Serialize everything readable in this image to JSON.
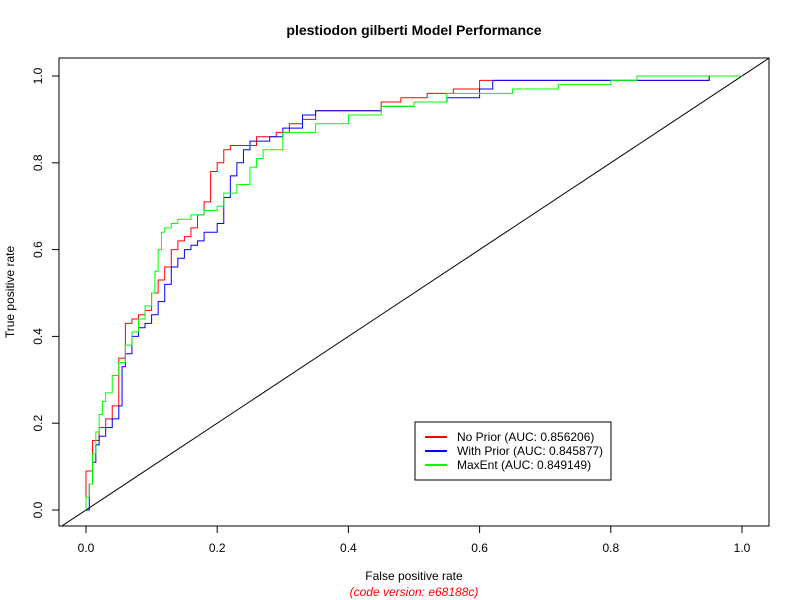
{
  "chart_data": {
    "type": "line",
    "title": "plestiodon gilberti Model Performance",
    "xlabel": "False positive rate",
    "ylabel": "True positive rate",
    "footnote": "(code version: e68188c)",
    "xlim": [
      0,
      1
    ],
    "ylim": [
      0,
      1
    ],
    "x_ticks": [
      0.0,
      0.2,
      0.4,
      0.6,
      0.8,
      1.0
    ],
    "x_tick_labels": [
      "0.0",
      "0.2",
      "0.4",
      "0.6",
      "0.8",
      "1.0"
    ],
    "y_ticks": [
      0.0,
      0.2,
      0.4,
      0.6,
      0.8,
      1.0
    ],
    "y_tick_labels": [
      "0.0",
      "0.2",
      "0.4",
      "0.6",
      "0.8",
      "1.0"
    ],
    "grid": false,
    "legend_position": "bottom-right",
    "diagonal_color": "#000000",
    "footnote_color": "#ff0000",
    "series": [
      {
        "name": "No Prior (AUC: 0.856206)",
        "color": "#ff0000",
        "points": [
          [
            0,
            0
          ],
          [
            0,
            0.09
          ],
          [
            0.01,
            0.12
          ],
          [
            0.01,
            0.16
          ],
          [
            0.02,
            0.19
          ],
          [
            0.03,
            0.21
          ],
          [
            0.04,
            0.22
          ],
          [
            0.04,
            0.24
          ],
          [
            0.05,
            0.25
          ],
          [
            0.05,
            0.35
          ],
          [
            0.06,
            0.39
          ],
          [
            0.06,
            0.43
          ],
          [
            0.07,
            0.44
          ],
          [
            0.08,
            0.45
          ],
          [
            0.09,
            0.46
          ],
          [
            0.1,
            0.5
          ],
          [
            0.11,
            0.53
          ],
          [
            0.12,
            0.56
          ],
          [
            0.13,
            0.6
          ],
          [
            0.14,
            0.62
          ],
          [
            0.15,
            0.63
          ],
          [
            0.16,
            0.65
          ],
          [
            0.17,
            0.68
          ],
          [
            0.18,
            0.71
          ],
          [
            0.19,
            0.72
          ],
          [
            0.19,
            0.78
          ],
          [
            0.2,
            0.8
          ],
          [
            0.21,
            0.83
          ],
          [
            0.22,
            0.84
          ],
          [
            0.25,
            0.84
          ],
          [
            0.26,
            0.86
          ],
          [
            0.29,
            0.87
          ],
          [
            0.31,
            0.89
          ],
          [
            0.33,
            0.9
          ],
          [
            0.35,
            0.92
          ],
          [
            0.4,
            0.92
          ],
          [
            0.45,
            0.94
          ],
          [
            0.48,
            0.95
          ],
          [
            0.52,
            0.96
          ],
          [
            0.56,
            0.97
          ],
          [
            0.6,
            0.99
          ],
          [
            0.7,
            0.99
          ],
          [
            0.9,
            0.99
          ],
          [
            0.95,
            1.0
          ],
          [
            1,
            1
          ]
        ]
      },
      {
        "name": "With Prior (AUC: 0.845877)",
        "color": "#0000ff",
        "points": [
          [
            0,
            0
          ],
          [
            0.005,
            0.06
          ],
          [
            0.01,
            0.11
          ],
          [
            0.015,
            0.15
          ],
          [
            0.02,
            0.17
          ],
          [
            0.03,
            0.19
          ],
          [
            0.04,
            0.21
          ],
          [
            0.05,
            0.24
          ],
          [
            0.055,
            0.33
          ],
          [
            0.06,
            0.36
          ],
          [
            0.07,
            0.4
          ],
          [
            0.08,
            0.42
          ],
          [
            0.09,
            0.43
          ],
          [
            0.1,
            0.45
          ],
          [
            0.11,
            0.48
          ],
          [
            0.12,
            0.52
          ],
          [
            0.13,
            0.56
          ],
          [
            0.14,
            0.58
          ],
          [
            0.15,
            0.6
          ],
          [
            0.16,
            0.61
          ],
          [
            0.17,
            0.62
          ],
          [
            0.18,
            0.64
          ],
          [
            0.2,
            0.66
          ],
          [
            0.21,
            0.72
          ],
          [
            0.22,
            0.77
          ],
          [
            0.23,
            0.8
          ],
          [
            0.24,
            0.83
          ],
          [
            0.25,
            0.85
          ],
          [
            0.28,
            0.86
          ],
          [
            0.3,
            0.88
          ],
          [
            0.33,
            0.91
          ],
          [
            0.35,
            0.92
          ],
          [
            0.4,
            0.92
          ],
          [
            0.45,
            0.93
          ],
          [
            0.5,
            0.94
          ],
          [
            0.55,
            0.95
          ],
          [
            0.6,
            0.97
          ],
          [
            0.62,
            0.99
          ],
          [
            0.7,
            0.99
          ],
          [
            0.85,
            0.99
          ],
          [
            0.95,
            1.0
          ],
          [
            1,
            1
          ]
        ]
      },
      {
        "name": "MaxEnt (AUC: 0.849149)",
        "color": "#00ff00",
        "points": [
          [
            0,
            0
          ],
          [
            0,
            0.03
          ],
          [
            0.005,
            0.06
          ],
          [
            0.01,
            0.13
          ],
          [
            0.015,
            0.18
          ],
          [
            0.02,
            0.22
          ],
          [
            0.025,
            0.25
          ],
          [
            0.03,
            0.27
          ],
          [
            0.04,
            0.31
          ],
          [
            0.05,
            0.34
          ],
          [
            0.06,
            0.38
          ],
          [
            0.07,
            0.41
          ],
          [
            0.08,
            0.44
          ],
          [
            0.09,
            0.47
          ],
          [
            0.1,
            0.5
          ],
          [
            0.105,
            0.55
          ],
          [
            0.11,
            0.6
          ],
          [
            0.115,
            0.64
          ],
          [
            0.12,
            0.65
          ],
          [
            0.13,
            0.66
          ],
          [
            0.14,
            0.67
          ],
          [
            0.15,
            0.67
          ],
          [
            0.16,
            0.68
          ],
          [
            0.18,
            0.69
          ],
          [
            0.2,
            0.7
          ],
          [
            0.21,
            0.73
          ],
          [
            0.23,
            0.75
          ],
          [
            0.25,
            0.79
          ],
          [
            0.26,
            0.81
          ],
          [
            0.27,
            0.83
          ],
          [
            0.3,
            0.83
          ],
          [
            0.3,
            0.87
          ],
          [
            0.35,
            0.89
          ],
          [
            0.4,
            0.91
          ],
          [
            0.45,
            0.93
          ],
          [
            0.5,
            0.94
          ],
          [
            0.55,
            0.96
          ],
          [
            0.6,
            0.96
          ],
          [
            0.65,
            0.97
          ],
          [
            0.7,
            0.97
          ],
          [
            0.72,
            0.98
          ],
          [
            0.8,
            0.99
          ],
          [
            0.84,
            1.0
          ],
          [
            1,
            1
          ]
        ]
      }
    ]
  }
}
